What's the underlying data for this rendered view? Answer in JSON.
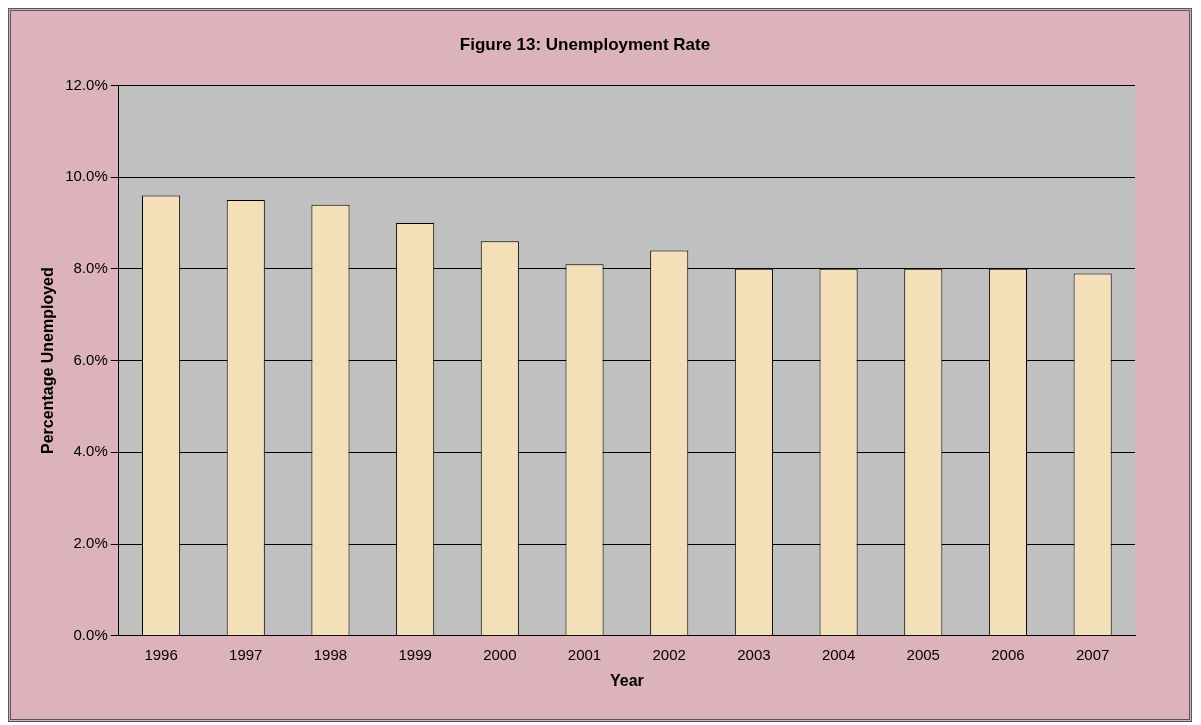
{
  "chart_data": {
    "type": "bar",
    "title": "Figure 13: Unemployment Rate",
    "xlabel": "Year",
    "ylabel": "Percentage Unemployed",
    "categories": [
      "1996",
      "1997",
      "1998",
      "1999",
      "2000",
      "2001",
      "2002",
      "2003",
      "2004",
      "2005",
      "2006",
      "2007"
    ],
    "values": [
      9.6,
      9.5,
      9.4,
      9.0,
      8.6,
      8.1,
      8.4,
      8.0,
      8.0,
      8.0,
      8.0,
      7.9
    ],
    "color": "#f3dfb8",
    "ylim": [
      0,
      12
    ],
    "yticks": [
      {
        "value": 0,
        "label": "0.0%"
      },
      {
        "value": 2,
        "label": "2.0%"
      },
      {
        "value": 4,
        "label": "4.0%"
      },
      {
        "value": 6,
        "label": "6.0%"
      },
      {
        "value": 8,
        "label": "8.0%"
      },
      {
        "value": 10,
        "label": "10.0%"
      },
      {
        "value": 12,
        "label": "12.0%"
      }
    ],
    "grid": "y",
    "legend": false
  }
}
